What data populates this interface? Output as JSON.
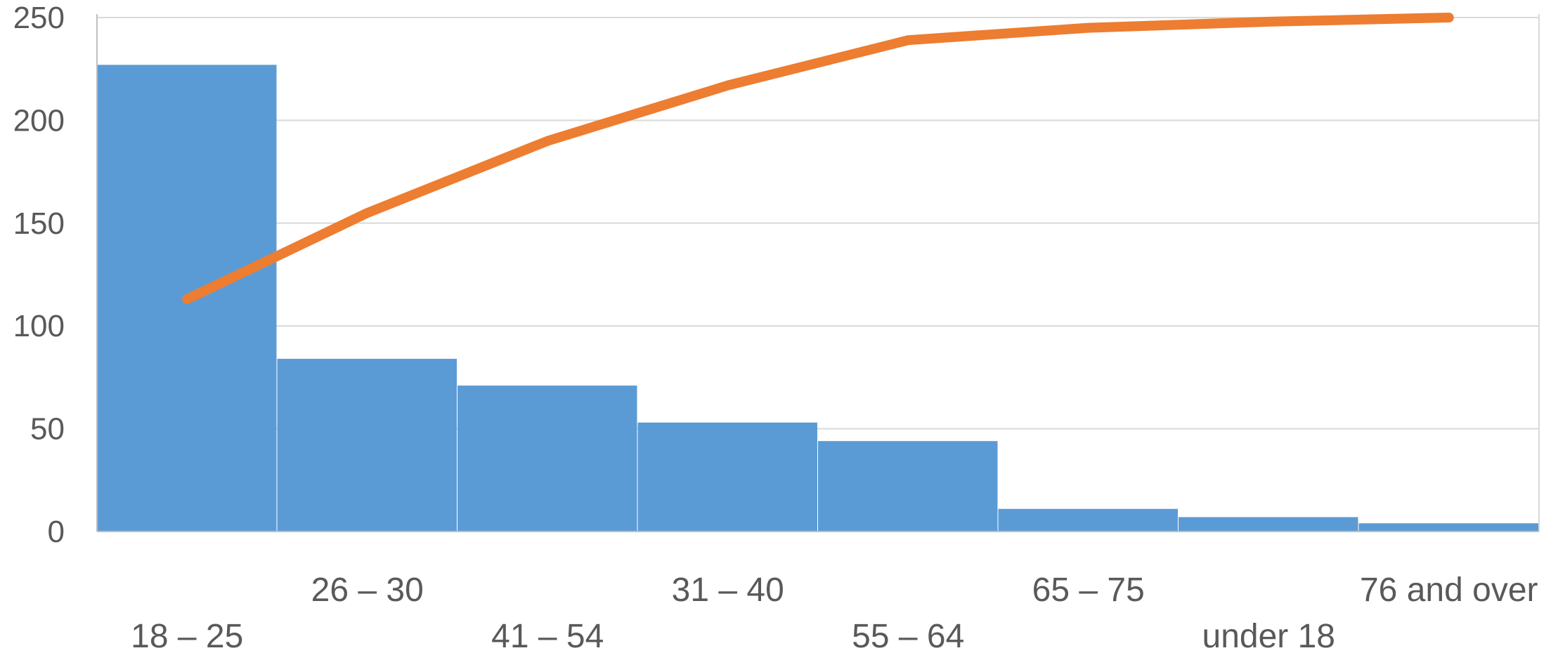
{
  "chart_data": {
    "type": "bar",
    "categories": [
      "18 – 25",
      "26 – 30",
      "41 – 54",
      "31 – 40",
      "55 – 64",
      "65 – 75",
      "under 18",
      "76 and over"
    ],
    "values": [
      227,
      84,
      71,
      53,
      44,
      11,
      7,
      4
    ],
    "series": [
      {
        "type": "bar",
        "values": [
          227,
          84,
          71,
          53,
          44,
          11,
          7,
          4
        ],
        "color": "#5B9BD5"
      },
      {
        "type": "line",
        "values": [
          113,
          155,
          190,
          217,
          239,
          245,
          248,
          250
        ],
        "color": "#ED7D31"
      }
    ],
    "title": "",
    "xlabel": "",
    "ylabel": "",
    "ylim": [
      0,
      250
    ],
    "yticks": [
      0,
      50,
      100,
      150,
      200,
      250
    ],
    "grid": true,
    "legend": "none"
  },
  "colors": {
    "bar": "#5B9BD5",
    "line": "#ED7D31",
    "grid": "#D9D9D9",
    "axis": "#BFBFBF",
    "text": "#595959"
  }
}
